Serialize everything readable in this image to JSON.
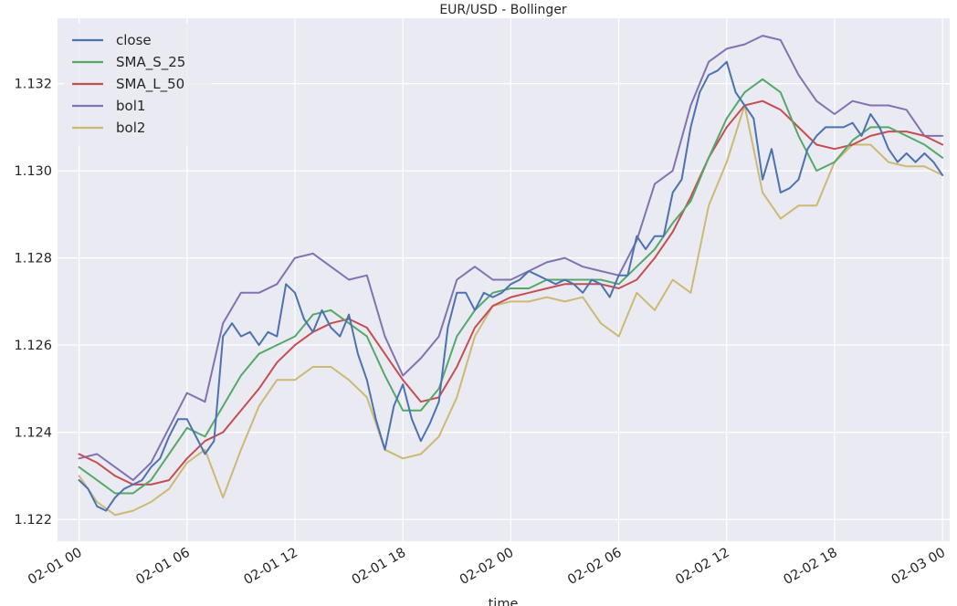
{
  "chart_data": {
    "type": "line",
    "title": "EUR/USD - Bollinger",
    "xlabel": "time",
    "ylabel": "",
    "x_ticks": [
      "02-01 00",
      "02-01 06",
      "02-01 12",
      "02-01 18",
      "02-02 00",
      "02-02 06",
      "02-02 12",
      "02-02 18",
      "02-03 00"
    ],
    "y_ticks": [
      "1.122",
      "1.124",
      "1.126",
      "1.128",
      "1.130",
      "1.132"
    ],
    "xlim_hours": [
      -1.2,
      48.4
    ],
    "ylim": [
      1.1215,
      1.1335
    ],
    "grid": true,
    "legend_position": "top-left",
    "series": [
      {
        "name": "close",
        "color": "#4c72b0",
        "x": [
          0,
          0.5,
          1,
          1.5,
          2,
          2.5,
          3,
          3.5,
          4,
          4.5,
          5,
          5.5,
          6,
          6.5,
          7,
          7.5,
          8,
          8.5,
          9,
          9.5,
          10,
          10.5,
          11,
          11.5,
          12,
          12.5,
          13,
          13.5,
          14,
          14.5,
          15,
          15.5,
          16,
          16.5,
          17,
          17.5,
          18,
          18.5,
          19,
          19.5,
          20,
          20.5,
          21,
          21.5,
          22,
          22.5,
          23,
          23.5,
          24,
          24.5,
          25,
          25.5,
          26,
          26.5,
          27,
          27.5,
          28,
          28.5,
          29,
          29.5,
          30,
          30.5,
          31,
          31.5,
          32,
          32.5,
          33,
          33.5,
          34,
          34.5,
          35,
          35.5,
          36,
          36.5,
          37,
          37.5,
          38,
          38.5,
          39,
          39.5,
          40,
          40.5,
          41,
          41.5,
          42,
          42.5,
          43,
          43.5,
          44,
          44.5,
          45,
          45.5,
          46,
          46.5,
          47,
          47.5,
          48
        ],
        "y": [
          1.1229,
          1.1227,
          1.1223,
          1.1222,
          1.1225,
          1.1227,
          1.1228,
          1.1229,
          1.1232,
          1.1234,
          1.1239,
          1.1243,
          1.1243,
          1.1239,
          1.1235,
          1.1238,
          1.1262,
          1.1265,
          1.1262,
          1.1263,
          1.126,
          1.1263,
          1.1262,
          1.1274,
          1.1272,
          1.1266,
          1.1263,
          1.1268,
          1.1264,
          1.1262,
          1.1267,
          1.1258,
          1.1252,
          1.1243,
          1.1236,
          1.1246,
          1.1251,
          1.1243,
          1.1238,
          1.1242,
          1.1247,
          1.1264,
          1.1272,
          1.1272,
          1.1268,
          1.1272,
          1.1271,
          1.1272,
          1.1274,
          1.1275,
          1.1277,
          1.1276,
          1.1275,
          1.1274,
          1.1275,
          1.1274,
          1.1272,
          1.1275,
          1.1274,
          1.1271,
          1.1276,
          1.1276,
          1.1285,
          1.1282,
          1.1285,
          1.1285,
          1.1295,
          1.1298,
          1.131,
          1.1318,
          1.1322,
          1.1323,
          1.1325,
          1.1318,
          1.1315,
          1.1312,
          1.1298,
          1.1305,
          1.1295,
          1.1296,
          1.1298,
          1.1305,
          1.1308,
          1.131,
          1.131,
          1.131,
          1.1311,
          1.1308,
          1.1313,
          1.131,
          1.1305,
          1.1302,
          1.1304,
          1.1302,
          1.1304,
          1.1302,
          1.1299
        ]
      },
      {
        "name": "SMA_S_25",
        "color": "#55a868",
        "x": [
          0,
          1,
          2,
          3,
          4,
          5,
          6,
          7,
          8,
          9,
          10,
          11,
          12,
          13,
          14,
          15,
          16,
          17,
          18,
          19,
          20,
          21,
          22,
          23,
          24,
          25,
          26,
          27,
          28,
          29,
          30,
          31,
          32,
          33,
          34,
          35,
          36,
          37,
          38,
          39,
          40,
          41,
          42,
          43,
          44,
          45,
          46,
          47,
          48
        ],
        "y": [
          1.1232,
          1.1229,
          1.1226,
          1.1226,
          1.1229,
          1.1235,
          1.1241,
          1.1239,
          1.1246,
          1.1253,
          1.1258,
          1.126,
          1.1262,
          1.1267,
          1.1268,
          1.1265,
          1.1262,
          1.1253,
          1.1245,
          1.1245,
          1.125,
          1.1262,
          1.1268,
          1.1272,
          1.1273,
          1.1273,
          1.1275,
          1.1275,
          1.1275,
          1.1275,
          1.1274,
          1.1278,
          1.1282,
          1.1288,
          1.1293,
          1.1303,
          1.1312,
          1.1318,
          1.1321,
          1.1318,
          1.1308,
          1.13,
          1.1302,
          1.1307,
          1.131,
          1.131,
          1.1308,
          1.1306,
          1.1303
        ]
      },
      {
        "name": "SMA_L_50",
        "color": "#c44e52",
        "x": [
          0,
          1,
          2,
          3,
          4,
          5,
          6,
          7,
          8,
          9,
          10,
          11,
          12,
          13,
          14,
          15,
          16,
          17,
          18,
          19,
          20,
          21,
          22,
          23,
          24,
          25,
          26,
          27,
          28,
          29,
          30,
          31,
          32,
          33,
          34,
          35,
          36,
          37,
          38,
          39,
          40,
          41,
          42,
          43,
          44,
          45,
          46,
          47,
          48
        ],
        "y": [
          1.1235,
          1.1233,
          1.123,
          1.1228,
          1.1228,
          1.1229,
          1.1234,
          1.1238,
          1.124,
          1.1245,
          1.125,
          1.1256,
          1.126,
          1.1263,
          1.1265,
          1.1266,
          1.1264,
          1.1258,
          1.1252,
          1.1247,
          1.1248,
          1.1255,
          1.1264,
          1.1269,
          1.1271,
          1.1272,
          1.1273,
          1.1274,
          1.1274,
          1.1274,
          1.1273,
          1.1275,
          1.128,
          1.1286,
          1.1294,
          1.1303,
          1.131,
          1.1315,
          1.1316,
          1.1314,
          1.131,
          1.1306,
          1.1305,
          1.1306,
          1.1308,
          1.1309,
          1.1309,
          1.1308,
          1.1306
        ]
      },
      {
        "name": "bol1",
        "color": "#8172b2",
        "x": [
          0,
          1,
          2,
          3,
          4,
          5,
          6,
          7,
          8,
          9,
          10,
          11,
          12,
          13,
          14,
          15,
          16,
          17,
          18,
          19,
          20,
          21,
          22,
          23,
          24,
          25,
          26,
          27,
          28,
          29,
          30,
          31,
          32,
          33,
          34,
          35,
          36,
          37,
          38,
          39,
          40,
          41,
          42,
          43,
          44,
          45,
          46,
          47,
          48
        ],
        "y": [
          1.1234,
          1.1235,
          1.1232,
          1.1229,
          1.1233,
          1.1241,
          1.1249,
          1.1247,
          1.1265,
          1.1272,
          1.1272,
          1.1274,
          1.128,
          1.1281,
          1.1278,
          1.1275,
          1.1276,
          1.1262,
          1.1253,
          1.1257,
          1.1262,
          1.1275,
          1.1278,
          1.1275,
          1.1275,
          1.1277,
          1.1279,
          1.128,
          1.1278,
          1.1277,
          1.1276,
          1.1284,
          1.1297,
          1.13,
          1.1315,
          1.1325,
          1.1328,
          1.1329,
          1.1331,
          1.133,
          1.1322,
          1.1316,
          1.1313,
          1.1316,
          1.1315,
          1.1315,
          1.1314,
          1.1308,
          1.1308
        ]
      },
      {
        "name": "bol2",
        "color": "#ccb974",
        "x": [
          0,
          1,
          2,
          3,
          4,
          5,
          6,
          7,
          8,
          9,
          10,
          11,
          12,
          13,
          14,
          15,
          16,
          17,
          18,
          19,
          20,
          21,
          22,
          23,
          24,
          25,
          26,
          27,
          28,
          29,
          30,
          31,
          32,
          33,
          34,
          35,
          36,
          37,
          38,
          39,
          40,
          41,
          42,
          43,
          44,
          45,
          46,
          47,
          48
        ],
        "y": [
          1.123,
          1.1224,
          1.1221,
          1.1222,
          1.1224,
          1.1227,
          1.1233,
          1.1236,
          1.1225,
          1.1236,
          1.1246,
          1.1252,
          1.1252,
          1.1255,
          1.1255,
          1.1252,
          1.1248,
          1.1236,
          1.1234,
          1.1235,
          1.1239,
          1.1248,
          1.1262,
          1.1269,
          1.127,
          1.127,
          1.1271,
          1.127,
          1.1271,
          1.1265,
          1.1262,
          1.1272,
          1.1268,
          1.1275,
          1.1272,
          1.1292,
          1.1302,
          1.1315,
          1.1295,
          1.1289,
          1.1292,
          1.1292,
          1.1302,
          1.1306,
          1.1306,
          1.1302,
          1.1301,
          1.1301,
          1.1299
        ]
      }
    ]
  }
}
